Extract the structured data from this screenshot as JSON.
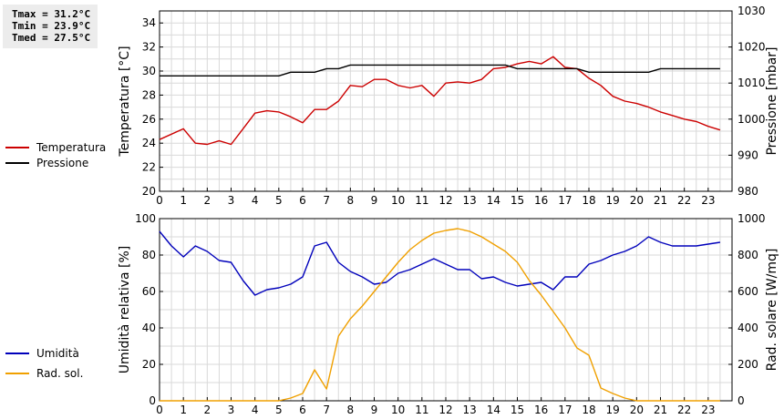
{
  "stats": {
    "tmax": "Tmax = 31.2°C",
    "tmin": "Tmin = 23.9°C",
    "tmed": "Tmed = 27.5°C"
  },
  "legend_top": [
    {
      "label": "Temperatura",
      "color": "#cc0000"
    },
    {
      "label": "Pressione",
      "color": "#000000"
    }
  ],
  "legend_bottom": [
    {
      "label": "Umidità",
      "color": "#0000bb"
    },
    {
      "label": "Rad. sol.",
      "color": "#f0a000"
    }
  ],
  "chart_data": [
    {
      "type": "line",
      "ylabel": "Temperatura [°C]",
      "y2label": "Pressione [mbar]",
      "xlim": [
        0,
        24
      ],
      "ylim": [
        20,
        35
      ],
      "y2lim": [
        980,
        1030
      ],
      "xticks": [
        0,
        1,
        2,
        3,
        4,
        5,
        6,
        7,
        8,
        9,
        10,
        11,
        12,
        13,
        14,
        15,
        16,
        17,
        18,
        19,
        20,
        21,
        22,
        23
      ],
      "yticks": [
        20,
        22,
        24,
        26,
        28,
        30,
        32,
        34
      ],
      "y2ticks": [
        980,
        990,
        1000,
        1010,
        1020,
        1030
      ],
      "grid": true,
      "series": [
        {
          "name": "Temperatura",
          "axis": "left",
          "color": "#cc0000",
          "x": [
            0,
            1,
            1.5,
            2,
            2.5,
            3,
            3.5,
            4,
            4.5,
            5,
            5.5,
            6,
            6.5,
            7,
            7.5,
            8,
            8.5,
            9,
            9.5,
            10,
            10.5,
            11,
            11.5,
            12,
            12.5,
            13,
            13.5,
            14,
            14.5,
            15,
            15.5,
            16,
            16.5,
            17,
            17.5,
            18,
            18.5,
            19,
            19.5,
            20,
            20.5,
            21,
            21.5,
            22,
            22.5,
            23,
            23.5
          ],
          "y": [
            24.3,
            25.2,
            24.0,
            23.9,
            24.2,
            23.9,
            25.2,
            26.5,
            26.7,
            26.6,
            26.2,
            25.7,
            26.8,
            26.8,
            27.5,
            28.8,
            28.7,
            29.3,
            29.3,
            28.8,
            28.6,
            28.8,
            27.9,
            29.0,
            29.1,
            29.0,
            29.3,
            30.2,
            30.3,
            30.6,
            30.8,
            30.6,
            31.2,
            30.3,
            30.2,
            29.4,
            28.8,
            27.9,
            27.5,
            27.3,
            27.0,
            26.6,
            26.3,
            26.0,
            25.8,
            25.4,
            25.1
          ]
        },
        {
          "name": "Pressione",
          "axis": "right",
          "color": "#000000",
          "x": [
            0,
            5,
            5.5,
            6,
            6.5,
            7,
            7.5,
            8,
            8.5,
            14.5,
            15,
            17.5,
            18,
            20.5,
            21,
            23.5
          ],
          "y": [
            1012,
            1012,
            1013,
            1013,
            1013,
            1014,
            1014,
            1015,
            1015,
            1015,
            1014,
            1014,
            1013,
            1013,
            1014,
            1014
          ]
        }
      ]
    },
    {
      "type": "line",
      "ylabel": "Umidità relativa [%]",
      "y2label": "Rad. solare [W/mq]",
      "xlim": [
        0,
        24
      ],
      "ylim": [
        0,
        100
      ],
      "y2lim": [
        0,
        1000
      ],
      "xticks": [
        0,
        1,
        2,
        3,
        4,
        5,
        6,
        7,
        8,
        9,
        10,
        11,
        12,
        13,
        14,
        15,
        16,
        17,
        18,
        19,
        20,
        21,
        22,
        23
      ],
      "yticks": [
        0,
        20,
        40,
        60,
        80,
        100
      ],
      "y2ticks": [
        0,
        200,
        400,
        600,
        800,
        1000
      ],
      "grid": true,
      "series": [
        {
          "name": "Umidità",
          "axis": "left",
          "color": "#0000bb",
          "x": [
            0,
            0.5,
            1,
            1.5,
            2,
            2.5,
            3,
            3.5,
            4,
            4.5,
            5,
            5.5,
            6,
            6.5,
            7,
            7.5,
            8,
            8.5,
            9,
            9.5,
            10,
            10.5,
            11,
            11.5,
            12,
            12.5,
            13,
            13.5,
            14,
            14.5,
            15,
            15.5,
            16,
            16.5,
            17,
            17.5,
            18,
            18.5,
            19,
            19.5,
            20,
            20.5,
            21,
            21.5,
            22,
            22.5,
            23,
            23.5
          ],
          "y": [
            93,
            85,
            79,
            85,
            82,
            77,
            76,
            66,
            58,
            61,
            62,
            64,
            68,
            85,
            87,
            76,
            71,
            68,
            64,
            65,
            70,
            72,
            75,
            78,
            75,
            72,
            72,
            67,
            68,
            65,
            63,
            64,
            65,
            61,
            68,
            68,
            75,
            77,
            80,
            82,
            85,
            90,
            87,
            85,
            85,
            85,
            86,
            87
          ]
        },
        {
          "name": "Rad. sol.",
          "axis": "right",
          "color": "#f0a000",
          "x": [
            0,
            1,
            2,
            3,
            4,
            5,
            5.5,
            6,
            6.5,
            7,
            7.5,
            8,
            8.5,
            9,
            9.5,
            10,
            10.5,
            11,
            11.5,
            12,
            12.5,
            13,
            13.5,
            14,
            14.5,
            15,
            15.5,
            16,
            16.5,
            17,
            17.5,
            18,
            18.5,
            19,
            19.5,
            20,
            21,
            22,
            23,
            23.5
          ],
          "y": [
            0,
            0,
            0,
            0,
            0,
            0,
            15,
            40,
            170,
            65,
            355,
            450,
            520,
            600,
            680,
            760,
            830,
            880,
            920,
            935,
            945,
            930,
            900,
            860,
            820,
            760,
            660,
            580,
            490,
            400,
            290,
            250,
            70,
            40,
            15,
            0,
            0,
            0,
            0,
            0
          ]
        }
      ]
    }
  ]
}
